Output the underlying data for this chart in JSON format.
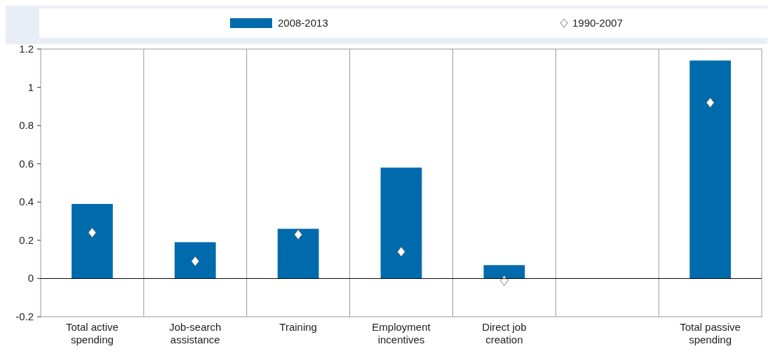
{
  "chart_data": {
    "type": "bar",
    "categories": [
      "Total active spending",
      "Job-search assistance",
      "Training",
      "Employment incentives",
      "Direct job creation",
      null,
      "Total passive spending"
    ],
    "series": [
      {
        "name": "2008-2013",
        "color": "#006bac",
        "values": [
          0.39,
          0.19,
          0.26,
          0.58,
          0.07,
          null,
          1.14
        ]
      },
      {
        "name": "1990-2007",
        "type": "scatter",
        "color": "#ffffff",
        "marker": "diamond",
        "values": [
          0.24,
          0.09,
          0.23,
          0.14,
          -0.01,
          null,
          0.92
        ]
      }
    ],
    "ylim": [
      -0.2,
      1.2
    ],
    "yticks": [
      -0.2,
      0,
      0.2,
      0.4,
      0.6,
      0.8,
      1,
      1.2
    ],
    "grid": "x",
    "legend": "top"
  }
}
